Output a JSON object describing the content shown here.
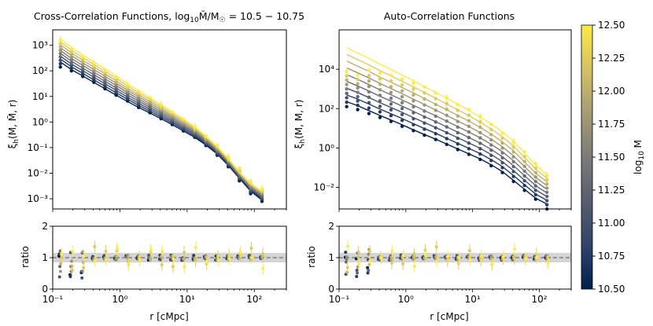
{
  "chart_data": [
    {
      "panel": "cross-main",
      "type": "line",
      "title": "Cross-Correlation Functions, log10 M̃/M☉ = 10.5 − 10.75",
      "xlabel": "",
      "ylabel": "ξh(M, M̃, r)",
      "xscale": "log",
      "yscale": "log",
      "xlim": [
        0.1,
        300
      ],
      "ylim": [
        0.0004,
        4000
      ],
      "yticks": [
        "10³",
        "10²",
        "10¹",
        "10⁰",
        "10⁻¹",
        "10⁻²",
        "10⁻³"
      ],
      "r": [
        0.13,
        0.19,
        0.28,
        0.41,
        0.6,
        0.88,
        1.3,
        1.9,
        2.8,
        4.1,
        6,
        8.8,
        13,
        19,
        28,
        41,
        60,
        88,
        130
      ],
      "series_log10M": [
        10.5,
        10.75,
        11.0,
        11.25,
        11.5,
        11.75,
        12.0,
        12.25,
        12.5
      ],
      "model_curves": {
        "log10_xi_lowest_mass": [
          2.35,
          2.05,
          1.8,
          1.55,
          1.3,
          1.05,
          0.8,
          0.57,
          0.35,
          0.13,
          -0.1,
          -0.35,
          -0.6,
          -0.9,
          -1.25,
          -1.7,
          -2.2,
          -2.7,
          -3.05
        ],
        "log10_xi_highest_mass": [
          3.25,
          2.92,
          2.62,
          2.35,
          2.08,
          1.8,
          1.5,
          1.22,
          0.95,
          0.68,
          0.4,
          0.12,
          -0.18,
          -0.55,
          -0.95,
          -1.42,
          -1.95,
          -2.4,
          -2.7
        ]
      },
      "data_points": {
        "log10_xi_lowest_mass": [
          2.15,
          2.0,
          1.78,
          1.55,
          1.3,
          1.05,
          0.82,
          0.57,
          0.36,
          0.13,
          -0.1,
          -0.35,
          -0.6,
          -0.92,
          -1.3,
          -1.75,
          -2.3,
          -2.8,
          -3.1
        ],
        "log10_xi_highest_mass": [
          3.2,
          2.85,
          2.55,
          2.3,
          2.02,
          1.75,
          1.45,
          1.2,
          0.95,
          0.68,
          0.4,
          0.12,
          -0.18,
          -0.55,
          -0.9,
          -1.35,
          -1.8,
          -2.3,
          -2.6
        ]
      }
    },
    {
      "panel": "cross-ratio",
      "type": "scatter",
      "xlabel": "r [cMpc]",
      "ylabel": "ratio",
      "xlim": [
        0.1,
        300
      ],
      "ylim": [
        0,
        2
      ],
      "yticks": [
        "0",
        "1",
        "2"
      ],
      "xticks": [
        "10⁻¹",
        "10⁰",
        "10¹",
        "10²"
      ],
      "reference_line": 1.0,
      "band": [
        0.85,
        1.15
      ]
    },
    {
      "panel": "auto-main",
      "type": "line",
      "title": "Auto-Correlation Functions",
      "xlabel": "",
      "ylabel": "ξh(M, M, r)",
      "xscale": "log",
      "yscale": "log",
      "xlim": [
        0.1,
        300
      ],
      "ylim": [
        0.0008,
        1000000
      ],
      "yticks": [
        "10⁴",
        "10²",
        "10⁰",
        "10⁻²"
      ],
      "r": [
        0.13,
        0.19,
        0.28,
        0.41,
        0.6,
        0.88,
        1.3,
        1.9,
        2.8,
        4.1,
        6,
        8.8,
        13,
        19,
        28,
        41,
        60,
        88,
        130
      ],
      "series_log10M": [
        10.5,
        10.75,
        11.0,
        11.25,
        11.5,
        11.75,
        12.0,
        12.25,
        12.5
      ],
      "model_curves": {
        "log10_xi_lowest_mass": [
          2.35,
          2.15,
          1.9,
          1.65,
          1.42,
          1.18,
          0.92,
          0.68,
          0.45,
          0.2,
          -0.05,
          -0.3,
          -0.55,
          -0.85,
          -1.2,
          -1.65,
          -2.1,
          -2.55,
          -2.85
        ],
        "log10_xi_highest_mass": [
          5.1,
          4.82,
          4.55,
          4.25,
          3.98,
          3.7,
          3.42,
          3.12,
          2.82,
          2.52,
          2.22,
          1.92,
          1.58,
          1.22,
          0.82,
          0.35,
          -0.25,
          -0.85,
          -1.35
        ]
      },
      "data_points": {
        "log10_xi_lowest_mass": [
          2.1,
          1.95,
          1.75,
          1.55,
          1.35,
          1.1,
          0.88,
          0.65,
          0.43,
          0.18,
          -0.08,
          -0.32,
          -0.58,
          -0.9,
          -1.25,
          -1.7,
          -2.15,
          -2.6,
          -3.1
        ],
        "log10_xi_highest_mass": [
          3.9,
          3.7,
          3.95,
          3.8,
          3.7,
          3.5,
          3.3,
          3.1,
          2.8,
          2.55,
          2.2,
          1.95,
          1.6,
          1.2,
          0.75,
          0.3,
          -0.2,
          -0.8,
          -1.4
        ]
      }
    },
    {
      "panel": "auto-ratio",
      "type": "scatter",
      "xlabel": "r [cMpc]",
      "ylabel": "ratio",
      "xlim": [
        0.1,
        300
      ],
      "ylim": [
        0,
        2
      ],
      "yticks": [
        "0",
        "1",
        "2"
      ],
      "xticks": [
        "10⁻¹",
        "10⁰",
        "10¹",
        "10²"
      ],
      "reference_line": 1.0,
      "band": [
        0.85,
        1.15
      ]
    }
  ],
  "colorbar": {
    "label": "log10 M",
    "range": [
      10.5,
      12.5
    ],
    "ticks": [
      "10.50",
      "10.75",
      "11.00",
      "11.25",
      "11.50",
      "11.75",
      "12.00",
      "12.25",
      "12.50"
    ],
    "colormap": "cividis",
    "colors": [
      "#00204d",
      "#31446b",
      "#575d6d",
      "#7c7b78",
      "#a69d75",
      "#d3c164",
      "#ffea46"
    ]
  }
}
